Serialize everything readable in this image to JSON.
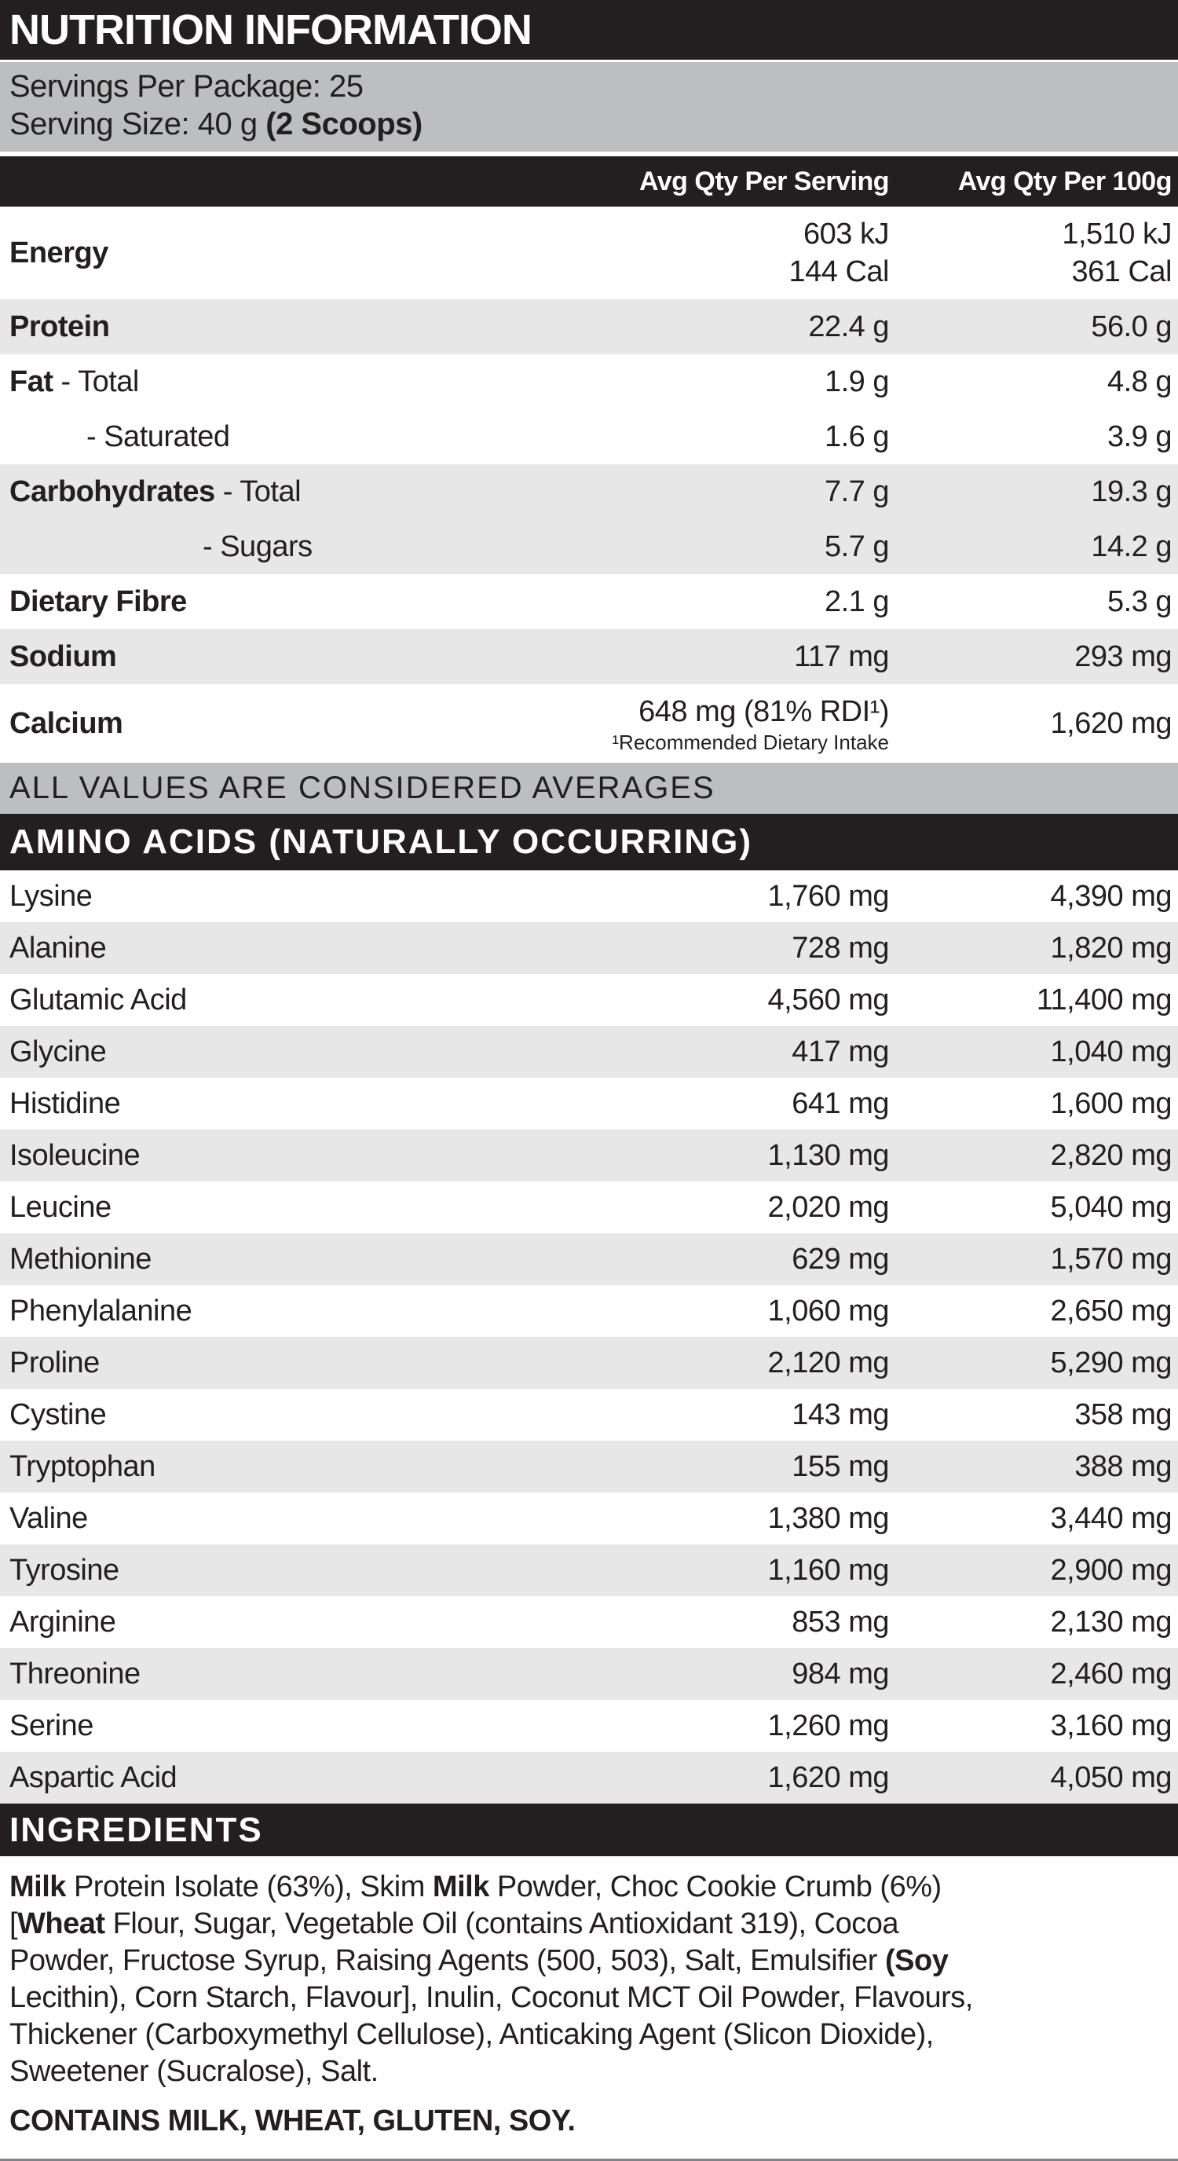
{
  "colors": {
    "bar_black": "#231f20",
    "bar_gray": "#bcbec0",
    "row_gray": "#e7e7e8",
    "text": "#231f20",
    "bottom_line": "#808285"
  },
  "header": {
    "title": "NUTRITION INFORMATION"
  },
  "serving_info": {
    "line1": "Servings Per Package: 25",
    "line2_regular": "Serving Size: 40 g ",
    "line2_bold": "(2 Scoops)"
  },
  "columns": {
    "per_serving": "Avg Qty Per Serving",
    "per_100g": "Avg Qty Per 100g"
  },
  "nutrients": [
    {
      "bold": "Energy",
      "rest": "",
      "per_serving": [
        "603 kJ",
        "144 Cal"
      ],
      "per_100g": [
        "1,510 kJ",
        "361 Cal"
      ],
      "shaded": false
    },
    {
      "bold": "Protein",
      "rest": "",
      "per_serving": "22.4 g",
      "per_100g": "56.0 g",
      "shaded": true
    },
    {
      "bold": "Fat",
      "rest": " - Total",
      "per_serving": "1.9 g",
      "per_100g": "4.8 g",
      "shaded": false
    },
    {
      "bold": "",
      "rest": "- Saturated",
      "indent": 1,
      "per_serving": "1.6 g",
      "per_100g": "3.9 g",
      "shaded": false
    },
    {
      "bold": "Carbohydrates",
      "rest": " - Total",
      "per_serving": "7.7 g",
      "per_100g": "19.3 g",
      "shaded": true
    },
    {
      "bold": "",
      "rest": "- Sugars",
      "indent": 2,
      "per_serving": "5.7 g",
      "per_100g": "14.2 g",
      "shaded": true
    },
    {
      "bold": "Dietary Fibre",
      "rest": "",
      "per_serving": "2.1 g",
      "per_100g": "5.3 g",
      "shaded": false
    },
    {
      "bold": "Sodium",
      "rest": "",
      "per_serving": "117 mg",
      "per_100g": "293 mg",
      "shaded": true
    },
    {
      "bold": "Calcium",
      "rest": "",
      "per_serving": "648 mg (81% RDI¹)",
      "footnote": "¹Recommended Dietary Intake",
      "per_100g": "1,620 mg",
      "shaded": false
    }
  ],
  "averages_note": "ALL VALUES ARE CONSIDERED AVERAGES",
  "amino_section": {
    "header": "AMINO ACIDS (NATURALLY OCCURRING)",
    "rows": [
      {
        "name": "Lysine",
        "per_serving": "1,760 mg",
        "per_100g": "4,390 mg"
      },
      {
        "name": "Alanine",
        "per_serving": "728 mg",
        "per_100g": "1,820 mg"
      },
      {
        "name": "Glutamic Acid",
        "per_serving": "4,560 mg",
        "per_100g": "11,400 mg"
      },
      {
        "name": "Glycine",
        "per_serving": "417 mg",
        "per_100g": "1,040 mg"
      },
      {
        "name": "Histidine",
        "per_serving": "641 mg",
        "per_100g": "1,600 mg"
      },
      {
        "name": "Isoleucine",
        "per_serving": "1,130 mg",
        "per_100g": "2,820 mg"
      },
      {
        "name": "Leucine",
        "per_serving": "2,020 mg",
        "per_100g": "5,040 mg"
      },
      {
        "name": "Methionine",
        "per_serving": "629 mg",
        "per_100g": "1,570 mg"
      },
      {
        "name": "Phenylalanine",
        "per_serving": "1,060 mg",
        "per_100g": "2,650 mg"
      },
      {
        "name": "Proline",
        "per_serving": "2,120 mg",
        "per_100g": "5,290 mg"
      },
      {
        "name": "Cystine",
        "per_serving": "143 mg",
        "per_100g": "358 mg"
      },
      {
        "name": "Tryptophan",
        "per_serving": "155 mg",
        "per_100g": "388 mg"
      },
      {
        "name": "Valine",
        "per_serving": "1,380 mg",
        "per_100g": "3,440 mg"
      },
      {
        "name": "Tyrosine",
        "per_serving": "1,160 mg",
        "per_100g": "2,900 mg"
      },
      {
        "name": "Arginine",
        "per_serving": "853 mg",
        "per_100g": "2,130 mg"
      },
      {
        "name": "Threonine",
        "per_serving": "984 mg",
        "per_100g": "2,460 mg"
      },
      {
        "name": "Serine",
        "per_serving": "1,260 mg",
        "per_100g": "3,160 mg"
      },
      {
        "name": "Aspartic Acid",
        "per_serving": "1,620 mg",
        "per_100g": "4,050 mg"
      }
    ]
  },
  "ingredients_section": {
    "header": "INGREDIENTS",
    "lines": [
      [
        {
          "t": "Milk",
          "b": true
        },
        {
          "t": " Protein Isolate (63%), Skim ",
          "b": false
        },
        {
          "t": "Milk",
          "b": true
        },
        {
          "t": " Powder, Choc Cookie Crumb (6%)",
          "b": false
        }
      ],
      [
        {
          "t": "[",
          "b": false
        },
        {
          "t": "Wheat",
          "b": true
        },
        {
          "t": " Flour, Sugar, Vegetable Oil (contains Antioxidant 319), Cocoa",
          "b": false
        }
      ],
      [
        {
          "t": "Powder, Fructose Syrup, Raising Agents (500, 503), Salt, Emulsifier ",
          "b": false
        },
        {
          "t": "(Soy",
          "b": true
        }
      ],
      [
        {
          "t": "Lecithin), Corn Starch, Flavour], Inulin, Coconut MCT Oil Powder, Flavours,",
          "b": false
        }
      ],
      [
        {
          "t": "Thickener (Carboxymethyl Cellulose), Anticaking Agent (Slicon Dioxide),",
          "b": false
        }
      ],
      [
        {
          "t": "Sweetener (Sucralose), Salt.",
          "b": false
        }
      ]
    ],
    "contains": "CONTAINS MILK, WHEAT, GLUTEN, SOY."
  }
}
